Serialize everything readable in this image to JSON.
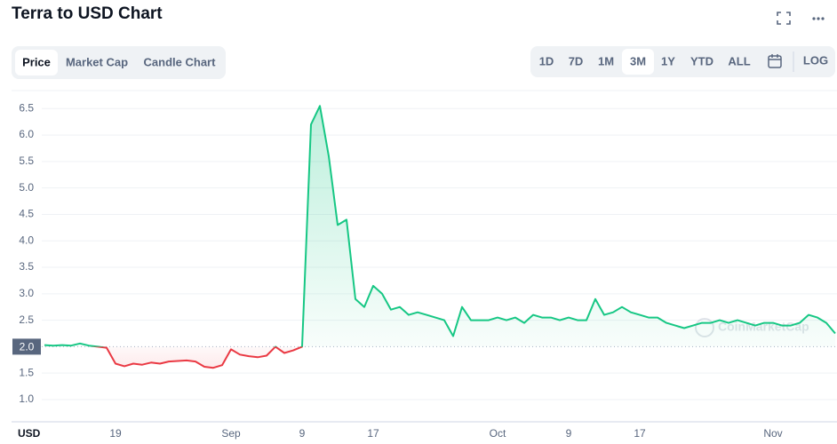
{
  "header": {
    "title": "Terra to USD Chart"
  },
  "tabs": [
    "Price",
    "Market Cap",
    "Candle Chart"
  ],
  "ranges": [
    "1D",
    "7D",
    "1M",
    "3M",
    "1Y",
    "YTD",
    "ALL"
  ],
  "log_button": "LOG",
  "watermark": "CoinMarketCap",
  "chart_data": {
    "type": "line",
    "currency_label": "USD",
    "color": "#16c784",
    "color_below": "#ea3943",
    "baseline": {
      "value": 2,
      "label": "2.0"
    },
    "grid": true,
    "ylim": [
      0.58,
      6.79
    ],
    "yticks": [
      {
        "value": 1,
        "label": "1.0"
      },
      1.5,
      2.5,
      {
        "value": 3,
        "label": "3.0"
      },
      3.5,
      {
        "value": 4,
        "label": "4.0"
      },
      4.5,
      {
        "value": 5,
        "label": "5.0"
      },
      5.5,
      {
        "value": 6,
        "label": "6.0"
      },
      6.5
    ],
    "categories": [
      null,
      null,
      null,
      null,
      null,
      null,
      null,
      null,
      "19",
      null,
      null,
      null,
      null,
      null,
      null,
      null,
      null,
      null,
      null,
      null,
      null,
      "Sep",
      null,
      null,
      null,
      null,
      null,
      null,
      null,
      "9",
      null,
      null,
      null,
      null,
      null,
      null,
      null,
      "17",
      null,
      null,
      null,
      null,
      null,
      null,
      null,
      null,
      null,
      null,
      null,
      null,
      null,
      "Oct",
      null,
      null,
      null,
      null,
      null,
      null,
      null,
      "9",
      null,
      null,
      null,
      null,
      null,
      null,
      null,
      "17",
      null,
      null,
      null,
      null,
      null,
      null,
      null,
      null,
      null,
      null,
      null,
      null,
      null,
      null,
      "Nov",
      null,
      null,
      null,
      null,
      null,
      null,
      null
    ],
    "values": [
      2.03,
      2.02,
      2.03,
      2.02,
      2.06,
      2.02,
      2.0,
      1.98,
      1.68,
      1.63,
      1.68,
      1.66,
      1.7,
      1.68,
      1.72,
      1.73,
      1.74,
      1.72,
      1.62,
      1.6,
      1.65,
      1.95,
      1.85,
      1.82,
      1.8,
      1.83,
      2.0,
      1.88,
      1.93,
      2.0,
      6.2,
      6.55,
      5.6,
      4.3,
      4.4,
      2.9,
      2.75,
      3.15,
      3.0,
      2.7,
      2.75,
      2.6,
      2.65,
      2.6,
      2.55,
      2.5,
      2.2,
      2.75,
      2.5,
      2.5,
      2.5,
      2.55,
      2.5,
      2.55,
      2.45,
      2.6,
      2.55,
      2.55,
      2.5,
      2.55,
      2.5,
      2.5,
      2.9,
      2.6,
      2.65,
      2.75,
      2.65,
      2.6,
      2.55,
      2.55,
      2.45,
      2.4,
      2.35,
      2.4,
      2.45,
      2.45,
      2.5,
      2.45,
      2.5,
      2.45,
      2.4,
      2.45,
      2.45,
      2.4,
      2.4,
      2.45,
      2.6,
      2.55,
      2.45,
      2.25
    ]
  }
}
